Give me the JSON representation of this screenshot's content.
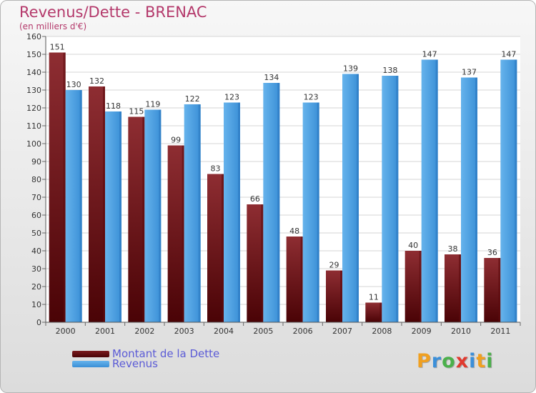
{
  "title": "Revenus/Dette - BRENAC",
  "subtitle": "(en milliers d'€)",
  "chart_data": {
    "type": "bar",
    "categories": [
      "2000",
      "2001",
      "2002",
      "2003",
      "2004",
      "2005",
      "2006",
      "2007",
      "2008",
      "2009",
      "2010",
      "2011"
    ],
    "series": [
      {
        "name": "Montant de la Dette",
        "values": [
          151,
          132,
          115,
          99,
          83,
          66,
          48,
          29,
          11,
          40,
          38,
          36
        ],
        "color": "#7a1a1d"
      },
      {
        "name": "Revenus",
        "values": [
          130,
          118,
          119,
          122,
          123,
          134,
          123,
          139,
          138,
          147,
          137,
          147
        ],
        "color": "#3b92db"
      }
    ],
    "ylim": [
      0,
      160
    ],
    "yticks": [
      0,
      10,
      20,
      30,
      40,
      50,
      60,
      70,
      80,
      90,
      100,
      110,
      120,
      130,
      140,
      150,
      160
    ],
    "grid": true,
    "legend_position": "bottom-left"
  },
  "legend": [
    {
      "label": "Montant de la Dette",
      "color": "#6b0f12"
    },
    {
      "label": "Revenus",
      "color": "#3b92db"
    }
  ],
  "logo": {
    "letters": [
      "P",
      "r",
      "o",
      "x",
      "i",
      "t",
      "i"
    ],
    "colors": [
      "#f0a020",
      "#3b8fd9",
      "#4bb04b",
      "#e03a2f",
      "#3b8fd9",
      "#f0a020",
      "#4bb04b"
    ]
  }
}
